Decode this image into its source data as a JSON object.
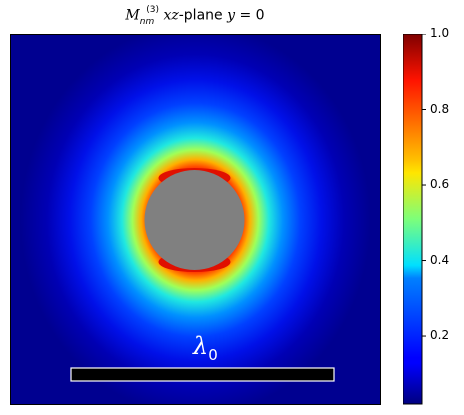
{
  "chart_data": {
    "type": "heatmap",
    "title": {
      "symbol": "M",
      "subscript": "nm",
      "superscript": "(3)",
      "plane": "xz",
      "rest": "-plane",
      "condition_var": "y",
      "condition_val": " = 0"
    },
    "colormap": "jet",
    "colorbar": {
      "range": [
        0.02,
        1.0
      ],
      "ticks": [
        0.2,
        0.4,
        0.6,
        0.8,
        1.0
      ],
      "tick_labels": [
        "0.2",
        "0.4",
        "0.6",
        "0.8",
        "1.0"
      ]
    },
    "axes_ticks_visible": false,
    "particle": {
      "shape": "circle",
      "color": "#808080",
      "radius_frac": 0.135
    },
    "scalebar": {
      "label_symbol": "λ",
      "label_sub": "0",
      "color": "#000000",
      "outline": "#ffffff"
    }
  }
}
